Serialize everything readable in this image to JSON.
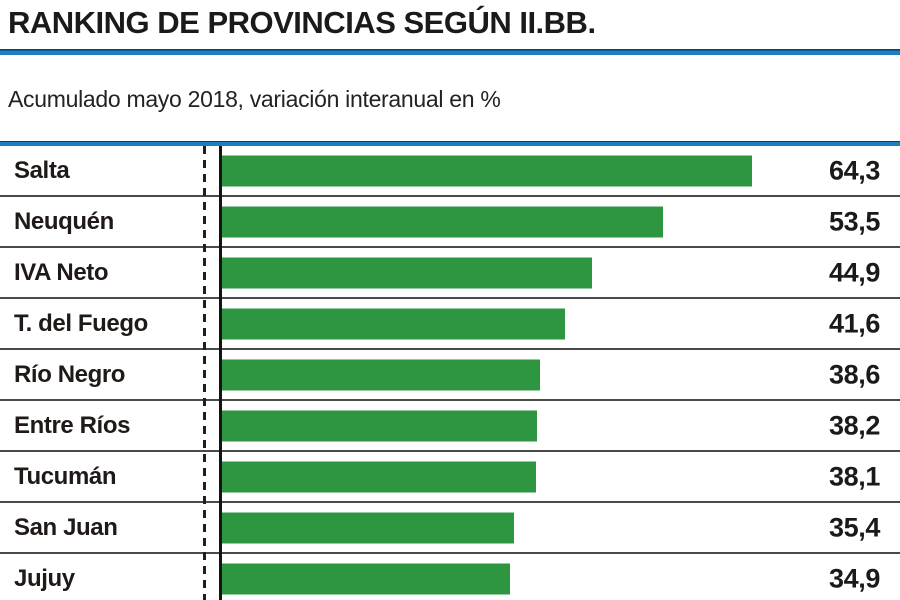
{
  "header": {
    "title": "RANKING DE PROVINCIAS SEGÚN II.BB.",
    "subtitle": "Acumulado mayo 2018, variación interanual en %"
  },
  "colors": {
    "bar_green": "#2e9640",
    "accent_blue": "#1a80c2",
    "accent_blue_dark": "#0d3f63",
    "separator_gray": "#4a4a4a",
    "text_black": "#1a1a1a"
  },
  "chart_data": {
    "type": "bar",
    "orientation": "horizontal",
    "title": "RANKING DE PROVINCIAS SEGÚN II.BB.",
    "subtitle": "Acumulado mayo 2018, variación interanual en %",
    "categories": [
      "Salta",
      "Neuquén",
      "IVA Neto",
      "T. del Fuego",
      "Río Negro",
      "Entre Ríos",
      "Tucumán",
      "San Juan",
      "Jujuy"
    ],
    "values": [
      64.3,
      53.5,
      44.9,
      41.6,
      38.6,
      38.2,
      38.1,
      35.4,
      34.9
    ],
    "value_labels": [
      "64,3",
      "53,5",
      "44,9",
      "41,6",
      "38,6",
      "38,2",
      "38,1",
      "35,4",
      "34,9"
    ],
    "xlim": [
      0,
      70
    ],
    "value_format": "comma-decimal",
    "grid": false,
    "legend": "none",
    "notes": "last row partially cut off at bottom edge"
  }
}
